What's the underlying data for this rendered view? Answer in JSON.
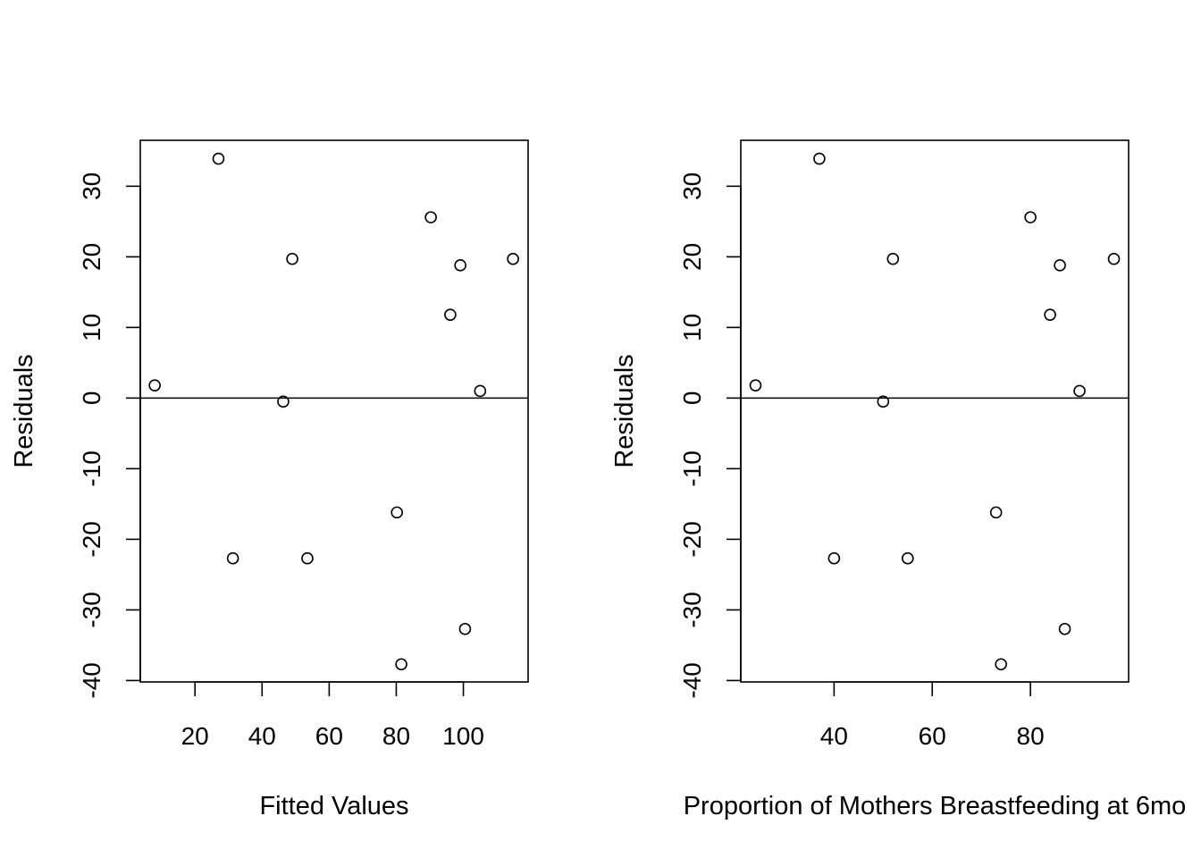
{
  "chart_data": [
    {
      "type": "scatter",
      "title": "",
      "xlabel": "Fitted Values",
      "ylabel": "Residuals",
      "xlim": [
        3.7,
        119.3
      ],
      "ylim": [
        -40.2,
        36.5
      ],
      "xticks": [
        20,
        40,
        60,
        80,
        100
      ],
      "yticks": [
        -40,
        -30,
        -20,
        -10,
        0,
        10,
        20,
        30
      ],
      "hline": 0,
      "grid": false,
      "points": [
        {
          "x": 8.0,
          "y": 1.8
        },
        {
          "x": 27.0,
          "y": 33.9
        },
        {
          "x": 31.3,
          "y": -22.7
        },
        {
          "x": 46.3,
          "y": -0.5
        },
        {
          "x": 49.0,
          "y": 19.7
        },
        {
          "x": 53.5,
          "y": -22.7
        },
        {
          "x": 80.2,
          "y": -16.2
        },
        {
          "x": 81.5,
          "y": -37.7
        },
        {
          "x": 90.3,
          "y": 25.6
        },
        {
          "x": 96.1,
          "y": 11.8
        },
        {
          "x": 99.1,
          "y": 18.8
        },
        {
          "x": 100.5,
          "y": -32.7
        },
        {
          "x": 105.0,
          "y": 1.0
        },
        {
          "x": 114.8,
          "y": 19.7
        }
      ]
    },
    {
      "type": "scatter",
      "title": "",
      "xlabel": "Proportion of Mothers Breastfeeding at 6mo",
      "ylabel": "Residuals",
      "xlim": [
        21.0,
        100.0
      ],
      "ylim": [
        -40.2,
        36.5
      ],
      "xticks": [
        40,
        60,
        80
      ],
      "yticks": [
        -40,
        -30,
        -20,
        -10,
        0,
        10,
        20,
        30
      ],
      "hline": 0,
      "grid": false,
      "points": [
        {
          "x": 24.0,
          "y": 1.8
        },
        {
          "x": 37.0,
          "y": 33.9
        },
        {
          "x": 40.0,
          "y": -22.7
        },
        {
          "x": 50.0,
          "y": -0.5
        },
        {
          "x": 52.0,
          "y": 19.7
        },
        {
          "x": 55.0,
          "y": -22.7
        },
        {
          "x": 73.0,
          "y": -16.2
        },
        {
          "x": 74.0,
          "y": -37.7
        },
        {
          "x": 80.0,
          "y": 25.6
        },
        {
          "x": 84.0,
          "y": 11.8
        },
        {
          "x": 86.0,
          "y": 18.8
        },
        {
          "x": 87.0,
          "y": -32.7
        },
        {
          "x": 90.0,
          "y": 1.0
        },
        {
          "x": 97.0,
          "y": 19.7
        }
      ]
    }
  ]
}
